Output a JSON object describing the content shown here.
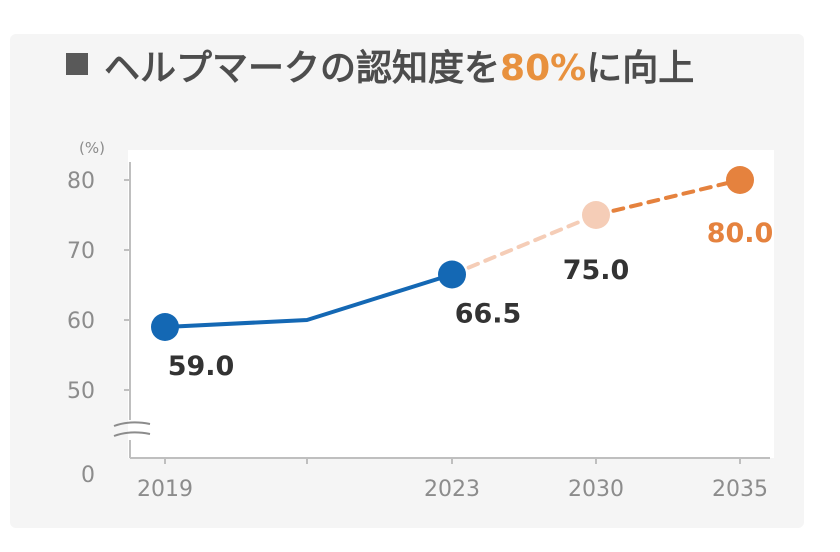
{
  "title": {
    "text_before": "ヘルプマークの認知度を",
    "highlight": "80%",
    "text_after": "に向上"
  },
  "colors": {
    "actual": "#1468b4",
    "projection_light": "#f5cdb7",
    "target": "#e5823e",
    "accent": "#e8913e"
  },
  "chart_data": {
    "type": "line",
    "title": "ヘルプマークの認知度を80%に向上",
    "ylabel": "(%)",
    "xlabel": "",
    "ylim": [
      0,
      80
    ],
    "y_ticks": [
      "0",
      "50",
      "60",
      "70",
      "80"
    ],
    "axis_break": true,
    "grid": false,
    "x_ticks": [
      "2019",
      "2023",
      "2030",
      "2035"
    ],
    "series": [
      {
        "style": "solid",
        "points": [
          {
            "x": 2019,
            "y": 59.0
          },
          {
            "x": 2021,
            "y": 60.0
          },
          {
            "x": 2023,
            "y": 66.5
          }
        ]
      },
      {
        "style": "dashed-light",
        "points": [
          {
            "x": 2023,
            "y": 66.5
          },
          {
            "x": 2030,
            "y": 75.0
          }
        ]
      },
      {
        "style": "dashed",
        "points": [
          {
            "x": 2030,
            "y": 75.0
          },
          {
            "x": 2035,
            "y": 80.0
          }
        ]
      }
    ],
    "markers": [
      {
        "x": 2019,
        "y": 59.0,
        "label": "59.0",
        "kind": "actual"
      },
      {
        "x": 2023,
        "y": 66.5,
        "label": "66.5",
        "kind": "actual"
      },
      {
        "x": 2030,
        "y": 75.0,
        "label": "75.0",
        "kind": "projection"
      },
      {
        "x": 2035,
        "y": 80.0,
        "label": "80.0",
        "kind": "target"
      }
    ]
  }
}
